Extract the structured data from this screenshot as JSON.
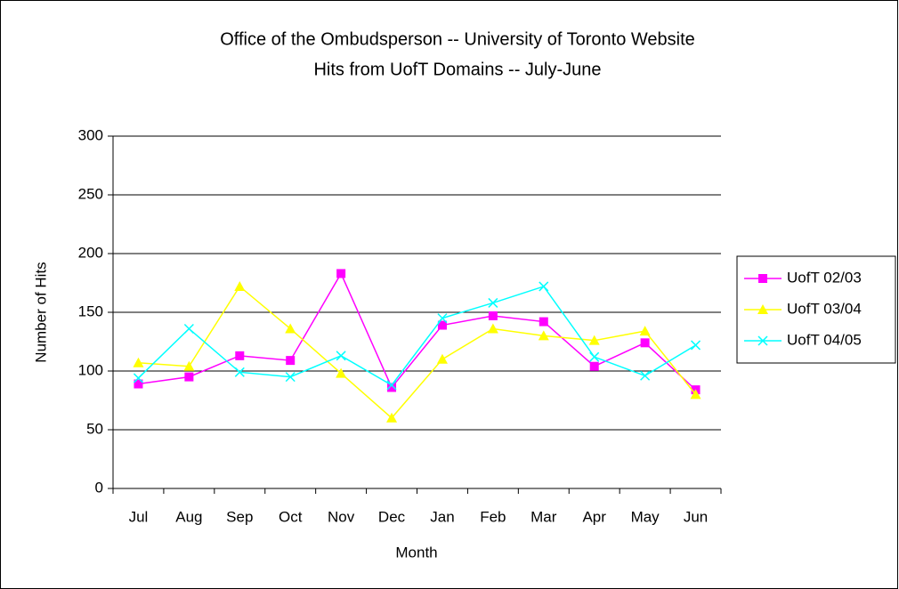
{
  "chart_data": {
    "type": "line",
    "title": "Office of the Ombudsperson -- University of Toronto Website",
    "subtitle": "Hits from UofT Domains -- July-June",
    "x_label": "Month",
    "y_label": "Number of Hits",
    "categories": [
      "Jul",
      "Aug",
      "Sep",
      "Oct",
      "Nov",
      "Dec",
      "Jan",
      "Feb",
      "Mar",
      "Apr",
      "May",
      "Jun"
    ],
    "series": [
      {
        "name": "UofT 02/03",
        "color": "#ff00ff",
        "marker": "square",
        "values": [
          89,
          95,
          113,
          109,
          183,
          86,
          139,
          147,
          142,
          104,
          124,
          84
        ]
      },
      {
        "name": "UofT 03/04",
        "color": "#ffff00",
        "marker": "triangle",
        "values": [
          107,
          104,
          172,
          136,
          98,
          60,
          110,
          136,
          130,
          126,
          134,
          80
        ]
      },
      {
        "name": "UofT 04/05",
        "color": "#00ffff",
        "marker": "x",
        "values": [
          94,
          136,
          99,
          95,
          113,
          88,
          145,
          158,
          172,
          112,
          96,
          122
        ]
      }
    ],
    "ylim": [
      0,
      300
    ],
    "yticks": [
      0,
      50,
      100,
      150,
      200,
      250,
      300
    ],
    "grid": true,
    "legend": "right"
  }
}
